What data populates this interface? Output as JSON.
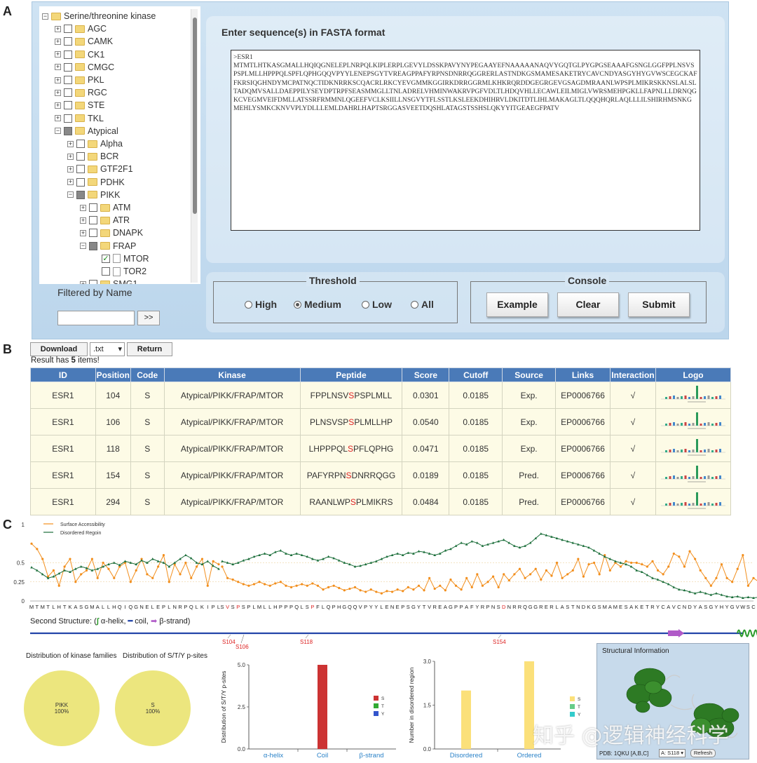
{
  "panel_labels": {
    "a": "A",
    "b": "B",
    "c": "C"
  },
  "tree": {
    "nodes": [
      {
        "label": "Serine/threonine kinase",
        "depth": 0,
        "expander": "−",
        "check": "none",
        "icon": "folder"
      },
      {
        "label": "AGC",
        "depth": 1,
        "expander": "+",
        "check": "empty",
        "icon": "folder"
      },
      {
        "label": "CAMK",
        "depth": 1,
        "expander": "+",
        "check": "empty",
        "icon": "folder"
      },
      {
        "label": "CK1",
        "depth": 1,
        "expander": "+",
        "check": "empty",
        "icon": "folder"
      },
      {
        "label": "CMGC",
        "depth": 1,
        "expander": "+",
        "check": "empty",
        "icon": "folder"
      },
      {
        "label": "PKL",
        "depth": 1,
        "expander": "+",
        "check": "empty",
        "icon": "folder"
      },
      {
        "label": "RGC",
        "depth": 1,
        "expander": "+",
        "check": "empty",
        "icon": "folder"
      },
      {
        "label": "STE",
        "depth": 1,
        "expander": "+",
        "check": "empty",
        "icon": "folder"
      },
      {
        "label": "TKL",
        "depth": 1,
        "expander": "+",
        "check": "empty",
        "icon": "folder"
      },
      {
        "label": "Atypical",
        "depth": 1,
        "expander": "−",
        "check": "partial",
        "icon": "folder"
      },
      {
        "label": "Alpha",
        "depth": 2,
        "expander": "+",
        "check": "empty",
        "icon": "folder"
      },
      {
        "label": "BCR",
        "depth": 2,
        "expander": "+",
        "check": "empty",
        "icon": "folder"
      },
      {
        "label": "GTF2F1",
        "depth": 2,
        "expander": "+",
        "check": "empty",
        "icon": "folder"
      },
      {
        "label": "PDHK",
        "depth": 2,
        "expander": "+",
        "check": "empty",
        "icon": "folder"
      },
      {
        "label": "PIKK",
        "depth": 2,
        "expander": "−",
        "check": "partial",
        "icon": "folder"
      },
      {
        "label": "ATM",
        "depth": 3,
        "expander": "+",
        "check": "empty",
        "icon": "folder"
      },
      {
        "label": "ATR",
        "depth": 3,
        "expander": "+",
        "check": "empty",
        "icon": "folder"
      },
      {
        "label": "DNAPK",
        "depth": 3,
        "expander": "+",
        "check": "empty",
        "icon": "folder"
      },
      {
        "label": "FRAP",
        "depth": 3,
        "expander": "−",
        "check": "partial",
        "icon": "folder"
      },
      {
        "label": "MTOR",
        "depth": 4,
        "expander": "",
        "check": "checked",
        "icon": "file"
      },
      {
        "label": "TOR2",
        "depth": 4,
        "expander": "",
        "check": "empty",
        "icon": "file"
      },
      {
        "label": "SMG1",
        "depth": 3,
        "expander": "+",
        "check": "empty",
        "icon": "folder"
      }
    ],
    "check_mark": "✓"
  },
  "filter": {
    "label": "Filtered by Name",
    "value": "",
    "button": ">>"
  },
  "sequence": {
    "title": "Enter sequence(s) in FASTA format",
    "text": ">ESR1\nMTMTLHTKASGMALLHQIQGNELEPLNRPQLKIPLERPLGEVYLDSSKPAVYNYPEGAAYEFNAAAAANAQVYGQTGLPYGPGSEAAAFGSNGLGGFPPLNSVSPSPLMLLHPPPQLSPFLQPHGQQVPYYLENEPSGYTVREAGPPAFYRPNSDNRRQGGRERLASTNDKGSMAMESAKETRYCAVCNDYASGYHYGVWSCEGCKAFFKRSIQGHNDYMCPATNQCTIDKNRRKSCQACRLRKCYEVGMMKGGIRKDRRGGRMLKHKRQRDDGEGRGEVGSAGDMRAANLWPSPLMIKRSKKNSLALSLTADQMVSALLDAEPPILYSEYDPTRPFSEASMMGLLTNLADRELVHMINWAKRVPGFVDLTLHDQVHLLECAWLEILMIGLVWRSMEHPGKLLFAPNLLLDRNQGKCVEGMVEIFDMLLATSSRFRMMNLQGEEFVCLKSIILLNSGVYTFLSSTLKSLEEKDHIHRVLDKITDTLIHLMAKAGLTLQQQHQRLAQLLLILSHIRHMSNKGMEHLYSMKCKNVVPLYDLLLEMLDAHRLHAPTSRGGASVEETDQSHLATAGSTSSHSLQKYYITGEAEGFPATV"
  },
  "threshold": {
    "legend": "Threshold",
    "options": [
      {
        "label": "High",
        "selected": false
      },
      {
        "label": "Medium",
        "selected": true
      },
      {
        "label": "Low",
        "selected": false
      },
      {
        "label": "All",
        "selected": false
      }
    ]
  },
  "console": {
    "legend": "Console",
    "example": "Example",
    "clear": "Clear",
    "submit": "Submit"
  },
  "results": {
    "download": "Download",
    "format": ".txt",
    "return": "Return",
    "count_prefix": "Result has ",
    "count": "5",
    "count_suffix": " items!",
    "headers": [
      "ID",
      "Position",
      "Code",
      "Kinase",
      "Peptide",
      "Score",
      "Cutoff",
      "Source",
      "Links",
      "Interaction",
      "Logo"
    ],
    "rows": [
      {
        "id": "ESR1",
        "position": "104",
        "code": "S",
        "kinase": "Atypical/PIKK/FRAP/MTOR",
        "pep_pre": "FPPLNSV",
        "pep_site": "S",
        "pep_post": "PSPLMLL",
        "score": "0.0301",
        "cutoff": "0.0185",
        "source": "Exp.",
        "link": "EP0006766",
        "interaction": "√"
      },
      {
        "id": "ESR1",
        "position": "106",
        "code": "S",
        "kinase": "Atypical/PIKK/FRAP/MTOR",
        "pep_pre": "PLNSVSP",
        "pep_site": "S",
        "pep_post": "PLMLLHP",
        "score": "0.0540",
        "cutoff": "0.0185",
        "source": "Exp.",
        "link": "EP0006766",
        "interaction": "√"
      },
      {
        "id": "ESR1",
        "position": "118",
        "code": "S",
        "kinase": "Atypical/PIKK/FRAP/MTOR",
        "pep_pre": "LHPPPQL",
        "pep_site": "S",
        "pep_post": "PFLQPHG",
        "score": "0.0471",
        "cutoff": "0.0185",
        "source": "Exp.",
        "link": "EP0006766",
        "interaction": "√"
      },
      {
        "id": "ESR1",
        "position": "154",
        "code": "S",
        "kinase": "Atypical/PIKK/FRAP/MTOR",
        "pep_pre": "PAFYRPN",
        "pep_site": "S",
        "pep_post": "DNRRQGG",
        "score": "0.0189",
        "cutoff": "0.0185",
        "source": "Pred.",
        "link": "EP0006766",
        "interaction": "√"
      },
      {
        "id": "ESR1",
        "position": "294",
        "code": "S",
        "kinase": "Atypical/PIKK/FRAP/MTOR",
        "pep_pre": "RAANLWP",
        "pep_site": "S",
        "pep_post": "PLMIKRS",
        "score": "0.0484",
        "cutoff": "0.0185",
        "source": "Pred.",
        "link": "EP0006766",
        "interaction": "√"
      }
    ]
  },
  "chart_data": [
    {
      "type": "line",
      "legend": [
        "Surface Accessibility",
        "Disordered Regoin"
      ],
      "ylim": [
        0,
        1
      ],
      "yticks": [
        "0",
        "0.25",
        "0.5",
        "1"
      ],
      "xticks_left": "MTMTLHTKASGMALLHQIQGNELEPLNRPQLKIPL",
      "xticks_right": "SVSPSPLMLLHPPPQLSPFLQPHGQQVPYYLENEPSGYTVREAGPPAFYRPNSDNRRQGGRERLASTNDKGSMAMESAKETRYCAVCNDYASGYHYGVWSC",
      "highlight_right_indices": [
        1,
        3,
        17,
        53
      ],
      "series": [
        {
          "name": "Surface Accessibility",
          "color": "#f28e1c",
          "left": [
            0.75,
            0.68,
            0.55,
            0.32,
            0.4,
            0.2,
            0.45,
            0.55,
            0.25,
            0.35,
            0.4,
            0.55,
            0.3,
            0.5,
            0.42,
            0.3,
            0.45,
            0.5,
            0.25,
            0.4,
            0.55,
            0.35,
            0.3,
            0.45,
            0.6,
            0.25,
            0.48,
            0.35,
            0.5,
            0.3,
            0.45,
            0.55,
            0.2,
            0.52,
            0.48
          ],
          "right": [
            0.45,
            0.3,
            0.28,
            0.25,
            0.22,
            0.2,
            0.22,
            0.25,
            0.22,
            0.2,
            0.23,
            0.25,
            0.2,
            0.18,
            0.2,
            0.22,
            0.2,
            0.23,
            0.2,
            0.15,
            0.18,
            0.2,
            0.17,
            0.14,
            0.16,
            0.18,
            0.14,
            0.12,
            0.15,
            0.12,
            0.1,
            0.13,
            0.12,
            0.15,
            0.13,
            0.18,
            0.15,
            0.2,
            0.14,
            0.3,
            0.16,
            0.2,
            0.14,
            0.28,
            0.2,
            0.15,
            0.3,
            0.18,
            0.35,
            0.2,
            0.25,
            0.32,
            0.18,
            0.35,
            0.27,
            0.35,
            0.42,
            0.3,
            0.35,
            0.42,
            0.28,
            0.4,
            0.33,
            0.5,
            0.3,
            0.35,
            0.4,
            0.55,
            0.32,
            0.48,
            0.5,
            0.35,
            0.6,
            0.4,
            0.5,
            0.45,
            0.52,
            0.5,
            0.5,
            0.48,
            0.45,
            0.52,
            0.4,
            0.35,
            0.45,
            0.62,
            0.58,
            0.45,
            0.65,
            0.55,
            0.4,
            0.3,
            0.2,
            0.3,
            0.48,
            0.3,
            0.25,
            0.42,
            0.6,
            0.2,
            0.3,
            0.25
          ]
        },
        {
          "name": "Disordered Regoin",
          "color": "#1b6e3a",
          "left": [
            0.44,
            0.4,
            0.35,
            0.3,
            0.32,
            0.36,
            0.4,
            0.38,
            0.42,
            0.45,
            0.43,
            0.4,
            0.42,
            0.45,
            0.48,
            0.5,
            0.47,
            0.52,
            0.5,
            0.48,
            0.53,
            0.5,
            0.55,
            0.52,
            0.5,
            0.45,
            0.5,
            0.55,
            0.6,
            0.56,
            0.5,
            0.48,
            0.52,
            0.46,
            0.42
          ],
          "right": [
            0.52,
            0.5,
            0.48,
            0.5,
            0.53,
            0.55,
            0.58,
            0.6,
            0.62,
            0.6,
            0.64,
            0.66,
            0.62,
            0.6,
            0.62,
            0.6,
            0.58,
            0.55,
            0.53,
            0.55,
            0.58,
            0.56,
            0.53,
            0.5,
            0.48,
            0.45,
            0.46,
            0.48,
            0.5,
            0.52,
            0.55,
            0.58,
            0.6,
            0.62,
            0.6,
            0.63,
            0.62,
            0.65,
            0.64,
            0.62,
            0.6,
            0.62,
            0.66,
            0.68,
            0.72,
            0.76,
            0.74,
            0.78,
            0.76,
            0.72,
            0.74,
            0.76,
            0.78,
            0.8,
            0.76,
            0.72,
            0.7,
            0.72,
            0.76,
            0.82,
            0.88,
            0.86,
            0.84,
            0.82,
            0.8,
            0.78,
            0.76,
            0.74,
            0.72,
            0.7,
            0.66,
            0.62,
            0.58,
            0.55,
            0.52,
            0.5,
            0.48,
            0.45,
            0.4,
            0.38,
            0.34,
            0.3,
            0.28,
            0.25,
            0.22,
            0.18,
            0.15,
            0.14,
            0.12,
            0.1,
            0.12,
            0.1,
            0.08,
            0.1,
            0.08,
            0.06,
            0.05,
            0.06,
            0.04,
            0.05,
            0.04,
            0.05
          ]
        }
      ]
    },
    {
      "type": "pie",
      "title": "Distribution of kinase families",
      "slices": [
        {
          "label": "PIKK",
          "value": 100,
          "text": "100%"
        }
      ],
      "color": "#ece67e"
    },
    {
      "type": "pie",
      "title": "Distribution of S/T/Y p-sites",
      "slices": [
        {
          "label": "S",
          "value": 100,
          "text": "100%"
        }
      ],
      "color": "#ece67e"
    },
    {
      "type": "bar",
      "ylabel": "Distribution of S/T/Y p-sites",
      "categories": [
        "α-helix",
        "Coil",
        "β-strand"
      ],
      "ylim": [
        0,
        5
      ],
      "yticks": [
        "0.0",
        "2.5",
        "5.0"
      ],
      "series": [
        {
          "name": "S",
          "values": [
            0,
            5,
            0
          ],
          "color": "#cc3333"
        },
        {
          "name": "T",
          "values": [
            0,
            0,
            0
          ],
          "color": "#33aa33"
        },
        {
          "name": "Y",
          "values": [
            0,
            0,
            0
          ],
          "color": "#3355cc"
        }
      ]
    },
    {
      "type": "bar",
      "ylabel": "Number in disordered region",
      "categories": [
        "Disordered",
        "Ordered"
      ],
      "ylim": [
        0,
        3
      ],
      "yticks": [
        "0.0",
        "1.5",
        "3.0"
      ],
      "series": [
        {
          "name": "S",
          "values": [
            2,
            3
          ],
          "color": "#fbe07a"
        },
        {
          "name": "T",
          "values": [
            0,
            0
          ],
          "color": "#66cc88"
        },
        {
          "name": "Y",
          "values": [
            0,
            0
          ],
          "color": "#33cccc"
        }
      ]
    }
  ],
  "secondary_structure": {
    "title": "Second Structure: (",
    "helix_label": " α-helix, ",
    "coil_label": " coil, ",
    "strand_label": " β-strand)",
    "sites": [
      "S104",
      "S106",
      "S118",
      "S154"
    ]
  },
  "structure": {
    "title": "Structural Information",
    "pdb": "PDB: 1QKU [A,B,C]",
    "site": "A: S118 ▾",
    "refresh": "Refresh"
  },
  "watermark": "知乎 @逻辑神经科学"
}
